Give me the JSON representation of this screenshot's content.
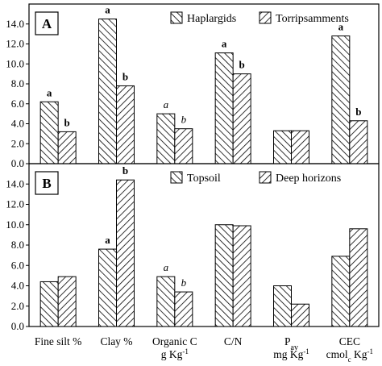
{
  "chart_data": [
    {
      "type": "bar",
      "panel_label": "A",
      "categories": [
        "Fine silt %",
        "Clay %",
        "Organic C",
        "C/N",
        "Pav",
        "CEC"
      ],
      "series": [
        {
          "name": "Haplargids",
          "values": [
            6.2,
            14.5,
            5.0,
            11.1,
            3.3,
            12.8
          ]
        },
        {
          "name": "Torripsamments",
          "values": [
            3.2,
            7.8,
            3.5,
            9.0,
            3.3,
            4.3
          ]
        }
      ],
      "significance": [
        [
          "a",
          "b",
          false
        ],
        [
          "a",
          "b",
          false
        ],
        [
          "a",
          "b",
          true
        ],
        [
          "a",
          "b",
          false
        ],
        [
          "",
          "",
          false
        ],
        [
          "a",
          "b",
          false
        ]
      ],
      "ylim": [
        0,
        16
      ],
      "yticks": [
        "0.0",
        "2.0",
        "4.0",
        "6.0",
        "8.0",
        "10.0",
        "12.0",
        "14.0"
      ],
      "legend_position": "top-right"
    },
    {
      "type": "bar",
      "panel_label": "B",
      "categories": [
        "Fine silt %",
        "Clay %",
        "Organic C",
        "C/N",
        "Pav",
        "CEC"
      ],
      "series": [
        {
          "name": "Topsoil",
          "values": [
            4.4,
            7.6,
            4.9,
            10.0,
            4.0,
            6.9
          ]
        },
        {
          "name": "Deep horizons",
          "values": [
            4.9,
            14.4,
            3.4,
            9.9,
            2.2,
            9.6
          ]
        }
      ],
      "significance": [
        [
          "",
          "",
          false
        ],
        [
          "a",
          "b",
          false
        ],
        [
          "a",
          "b",
          true
        ],
        [
          "",
          "",
          false
        ],
        [
          "",
          "",
          false
        ],
        [
          "",
          "",
          false
        ]
      ],
      "ylim": [
        0,
        16
      ],
      "yticks": [
        "0.0",
        "2.0",
        "4.0",
        "6.0",
        "8.0",
        "10.0",
        "12.0",
        "14.0"
      ],
      "legend_position": "top-right"
    }
  ],
  "x_axis_labels": [
    {
      "line1": "Fine silt %",
      "line2": ""
    },
    {
      "line1": "Clay %",
      "line2": ""
    },
    {
      "line1": "Organic C",
      "line2": "g Kg-1"
    },
    {
      "line1": "C/N",
      "line2": ""
    },
    {
      "line1": "Pav",
      "line2": "mg Kg-1"
    },
    {
      "line1": "CEC",
      "line2": "cmolc Kg-1"
    }
  ]
}
